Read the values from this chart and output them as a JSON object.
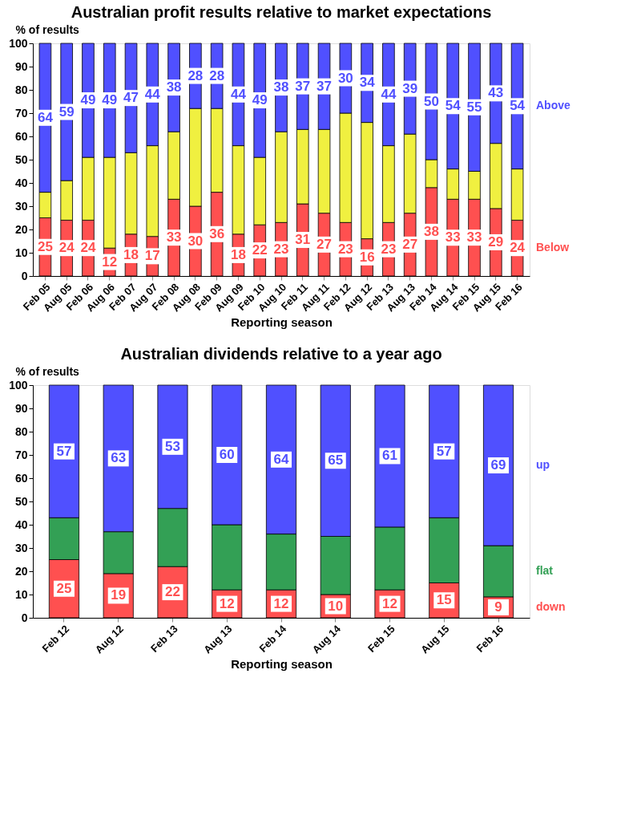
{
  "chart_data": [
    {
      "type": "bar",
      "stacked": true,
      "title": "Australian profit results relative to market expectations",
      "ylabel": "% of results",
      "xlabel": "Reporting season",
      "categories": [
        "Feb 05",
        "Aug 05",
        "Feb 06",
        "Aug 06",
        "Feb 07",
        "Aug 07",
        "Feb 08",
        "Aug 08",
        "Feb 09",
        "Aug 09",
        "Feb 10",
        "Aug 10",
        "Feb 11",
        "Aug 11",
        "Feb 12",
        "Aug 12",
        "Feb 13",
        "Aug 13",
        "Feb 14",
        "Aug 14",
        "Feb 15",
        "Aug 15",
        "Feb 16"
      ],
      "series": [
        {
          "name": "Below",
          "color": "#ff5050",
          "values": [
            25,
            24,
            24,
            12,
            18,
            17,
            33,
            30,
            36,
            18,
            22,
            23,
            31,
            27,
            23,
            16,
            23,
            27,
            38,
            33,
            33,
            29,
            24
          ],
          "value_labels": [
            "25",
            "24",
            "24",
            "12",
            "18",
            "17",
            "33",
            "30",
            "36",
            "18",
            "22",
            "23",
            "31",
            "27",
            "23",
            "16",
            "23",
            "27",
            "38",
            "33",
            "33",
            "29",
            "24"
          ]
        },
        {
          "color": "#f0f040",
          "values": [
            11,
            17,
            27,
            39,
            35,
            39,
            29,
            42,
            36,
            38,
            29,
            39,
            32,
            36,
            47,
            50,
            33,
            34,
            12,
            13,
            12,
            28,
            22
          ]
        },
        {
          "name": "Above",
          "color": "#5050ff",
          "values": [
            64,
            59,
            49,
            49,
            47,
            44,
            38,
            28,
            28,
            44,
            49,
            38,
            37,
            37,
            30,
            34,
            44,
            39,
            50,
            54,
            55,
            43,
            54
          ],
          "value_labels": [
            "64",
            "59",
            "49",
            "49",
            "47",
            "44",
            "38",
            "28",
            "28",
            "44",
            "49",
            "38",
            "37",
            "37",
            "30",
            "34",
            "44",
            "39",
            "50",
            "54",
            "55",
            "43",
            "54"
          ]
        }
      ],
      "ylim": [
        0,
        100
      ],
      "yticks": [
        0,
        10,
        20,
        30,
        40,
        50,
        60,
        70,
        80,
        90,
        100
      ],
      "grid": false
    },
    {
      "type": "bar",
      "stacked": true,
      "title": "Australian dividends relative to a year ago",
      "ylabel": "% of results",
      "xlabel": "Reporting season",
      "categories": [
        "Feb 12",
        "Aug 12",
        "Feb 13",
        "Aug 13",
        "Feb 14",
        "Aug 14",
        "Feb 15",
        "Aug 15",
        "Feb 16"
      ],
      "series": [
        {
          "name": "down",
          "color": "#ff5050",
          "values": [
            25,
            19,
            22,
            12,
            12,
            10,
            12,
            15,
            9
          ],
          "value_labels": [
            "25",
            "19",
            "22",
            "12",
            "12",
            "10",
            "12",
            "15",
            "9"
          ]
        },
        {
          "name": "flat",
          "color": "#33a055",
          "values": [
            18,
            18,
            25,
            28,
            24,
            25,
            27,
            28,
            22
          ]
        },
        {
          "name": "up",
          "color": "#5050ff",
          "values": [
            57,
            63,
            53,
            60,
            64,
            65,
            61,
            57,
            69
          ],
          "value_labels": [
            "57",
            "63",
            "53",
            "60",
            "64",
            "65",
            "61",
            "57",
            "69"
          ]
        }
      ],
      "ylim": [
        0,
        100
      ],
      "yticks": [
        0,
        10,
        20,
        30,
        40,
        50,
        60,
        70,
        80,
        90,
        100
      ],
      "grid": false
    }
  ]
}
